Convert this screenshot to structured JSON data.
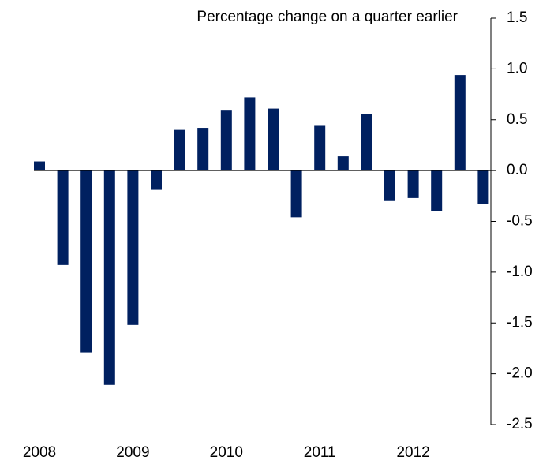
{
  "chart_data": {
    "type": "bar",
    "title": "Percentage change on a quarter earlier",
    "categories": [
      "2008",
      null,
      null,
      null,
      "2009",
      null,
      null,
      null,
      "2010",
      null,
      null,
      null,
      "2011",
      null,
      null,
      null,
      "2012",
      null,
      null,
      null
    ],
    "values": [
      0.09,
      -0.93,
      -1.79,
      -2.11,
      -1.52,
      -0.19,
      0.4,
      0.42,
      0.59,
      0.72,
      0.61,
      -0.46,
      0.44,
      0.14,
      0.56,
      -0.3,
      -0.27,
      -0.4,
      0.94,
      -0.33
    ],
    "color": "#002060",
    "ylim": [
      -2.5,
      1.5
    ],
    "yticks": [
      -2.5,
      {
        "value": -2,
        "label": "-2.0"
      },
      -1.5,
      {
        "value": -1,
        "label": "-1.0"
      },
      -0.5,
      {
        "value": 0,
        "label": "0.0"
      },
      0.5,
      {
        "value": 1,
        "label": "1.0"
      },
      1.5
    ]
  }
}
